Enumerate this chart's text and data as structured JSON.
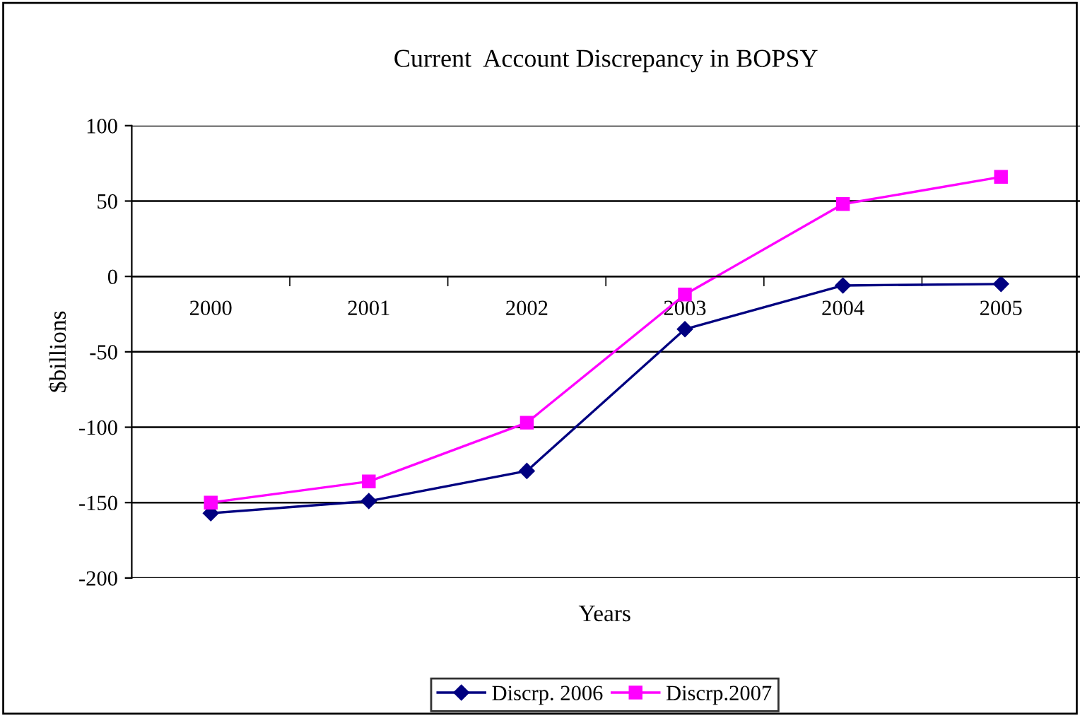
{
  "chart_data": {
    "type": "line",
    "title": "Current  Account Discrepancy in BOPSY",
    "xlabel": "Years",
    "ylabel": "$billions",
    "categories": [
      "2000",
      "2001",
      "2002",
      "2003",
      "2004",
      "2005"
    ],
    "series": [
      {
        "name": "Discrp. 2006",
        "color": "#000080",
        "marker": "diamond",
        "values": [
          -157,
          -149,
          -129,
          -35,
          -6,
          -5
        ]
      },
      {
        "name": "Discrp.2007",
        "color": "#ff00ff",
        "marker": "square",
        "values": [
          -150,
          -136,
          -97,
          -12,
          48,
          66
        ]
      }
    ],
    "ylim": [
      -200,
      100
    ],
    "yticks": [
      -200,
      -150,
      -100,
      -50,
      0,
      50,
      100
    ],
    "grid": "y",
    "legend": "bottom",
    "line_style": "solid"
  }
}
